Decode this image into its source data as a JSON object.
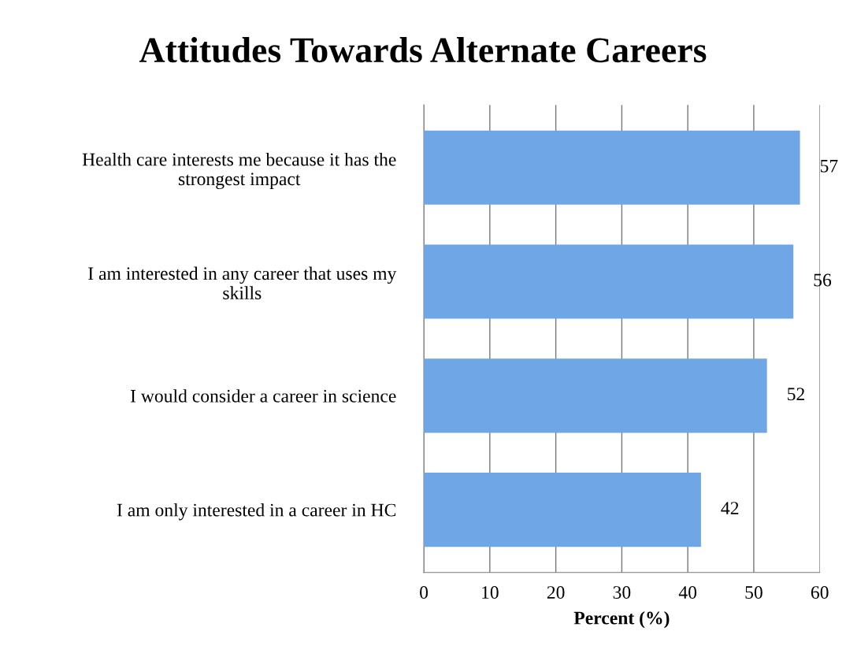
{
  "chart_data": {
    "type": "bar",
    "orientation": "horizontal",
    "title": "Attitudes Towards Alternate Careers",
    "xlabel": "Percent (%)",
    "categories": [
      "Health care interests me because it has the strongest impact",
      "I am interested in any career that uses my skills",
      "I would consider a career in science",
      "I am only interested in a career in HC"
    ],
    "values": [
      57,
      56,
      52,
      42
    ],
    "color": "#6fa6e6",
    "xlim": [
      0,
      60
    ],
    "xticks": [
      0,
      10,
      20,
      30,
      40,
      50,
      60
    ],
    "grid": "x",
    "data_labels": true
  }
}
